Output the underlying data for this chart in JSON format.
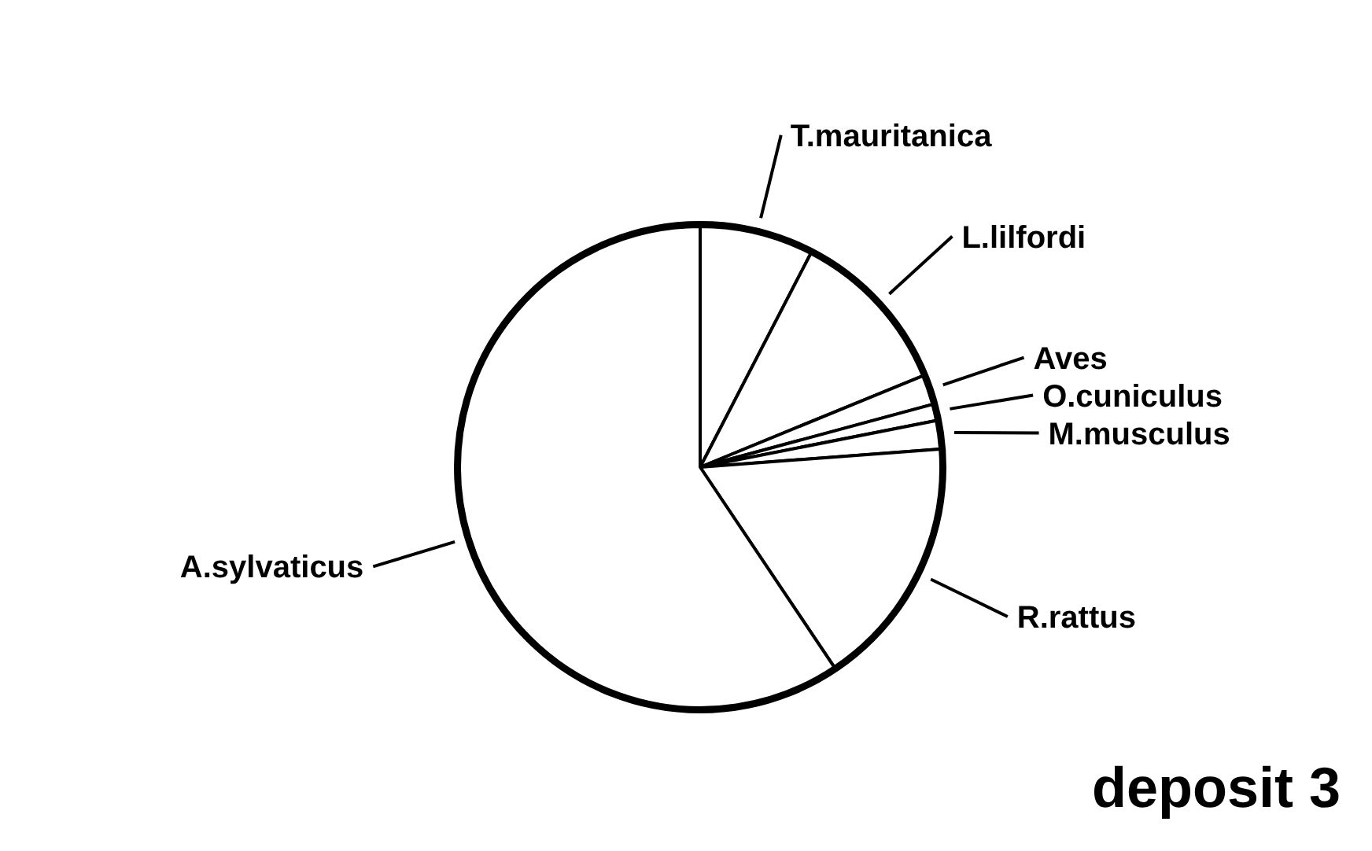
{
  "chart_data": {
    "type": "pie",
    "title": "deposit 3",
    "categories": [
      "T.mauritanica",
      "L.lilfordi",
      "Aves",
      "O.cuniculus",
      "M.musculus",
      "R.rattus",
      "A.sylvaticus"
    ],
    "values": [
      7.6,
      11.2,
      2.0,
      1.1,
      1.9,
      16.8,
      59.4
    ],
    "colors": [
      "#ffffff",
      "#ffffff",
      "#ffffff",
      "#ffffff",
      "#ffffff",
      "#ffffff",
      "#ffffff"
    ]
  }
}
